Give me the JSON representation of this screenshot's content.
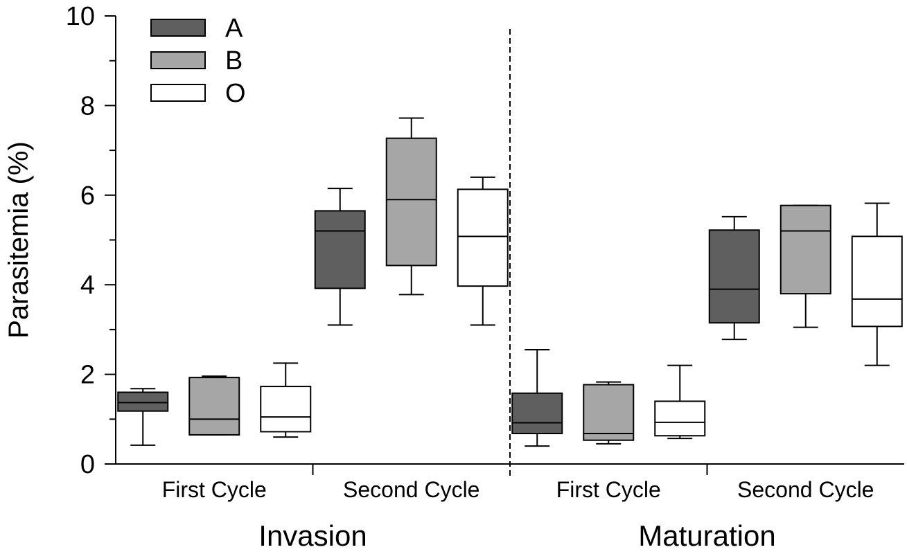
{
  "chart_data": {
    "type": "box",
    "ylabel": "Parasitemia (%)",
    "ylim": [
      0,
      10
    ],
    "yticks": [
      "0",
      "2",
      "4",
      "6",
      "8",
      "10"
    ],
    "grid": false,
    "legend_position": "top-left",
    "series": [
      {
        "name": "A",
        "color": "#5f5f5f"
      },
      {
        "name": "B",
        "color": "#a6a6a6"
      },
      {
        "name": "O",
        "color": "#ffffff"
      }
    ],
    "groups": [
      {
        "label": "Invasion",
        "cycles": [
          {
            "label": "First Cycle",
            "boxes": [
              {
                "series": "A",
                "min": 0.42,
                "q1": 1.18,
                "median": 1.37,
                "q3": 1.6,
                "max": 1.68
              },
              {
                "series": "B",
                "min": 0.65,
                "q1": 0.65,
                "median": 1.0,
                "q3": 1.93,
                "max": 1.96
              },
              {
                "series": "O",
                "min": 0.6,
                "q1": 0.72,
                "median": 1.05,
                "q3": 1.73,
                "max": 2.25
              }
            ]
          },
          {
            "label": "Second Cycle",
            "boxes": [
              {
                "series": "A",
                "min": 3.1,
                "q1": 3.92,
                "median": 5.2,
                "q3": 5.65,
                "max": 6.15
              },
              {
                "series": "B",
                "min": 3.78,
                "q1": 4.43,
                "median": 5.9,
                "q3": 7.27,
                "max": 7.72
              },
              {
                "series": "O",
                "min": 3.1,
                "q1": 3.97,
                "median": 5.08,
                "q3": 6.13,
                "max": 6.4
              }
            ]
          }
        ]
      },
      {
        "label": "Maturation",
        "cycles": [
          {
            "label": "First Cycle",
            "boxes": [
              {
                "series": "A",
                "min": 0.4,
                "q1": 0.68,
                "median": 0.92,
                "q3": 1.58,
                "max": 2.55
              },
              {
                "series": "B",
                "min": 0.45,
                "q1": 0.53,
                "median": 0.68,
                "q3": 1.77,
                "max": 1.83
              },
              {
                "series": "O",
                "min": 0.57,
                "q1": 0.63,
                "median": 0.93,
                "q3": 1.4,
                "max": 2.2
              }
            ]
          },
          {
            "label": "Second Cycle",
            "boxes": [
              {
                "series": "A",
                "min": 2.78,
                "q1": 3.15,
                "median": 3.9,
                "q3": 5.22,
                "max": 5.52
              },
              {
                "series": "B",
                "min": 3.05,
                "q1": 3.8,
                "median": 5.2,
                "q3": 5.77,
                "max": 5.77
              },
              {
                "series": "O",
                "min": 2.2,
                "q1": 3.07,
                "median": 3.68,
                "q3": 5.08,
                "max": 5.82
              }
            ]
          }
        ]
      }
    ]
  }
}
